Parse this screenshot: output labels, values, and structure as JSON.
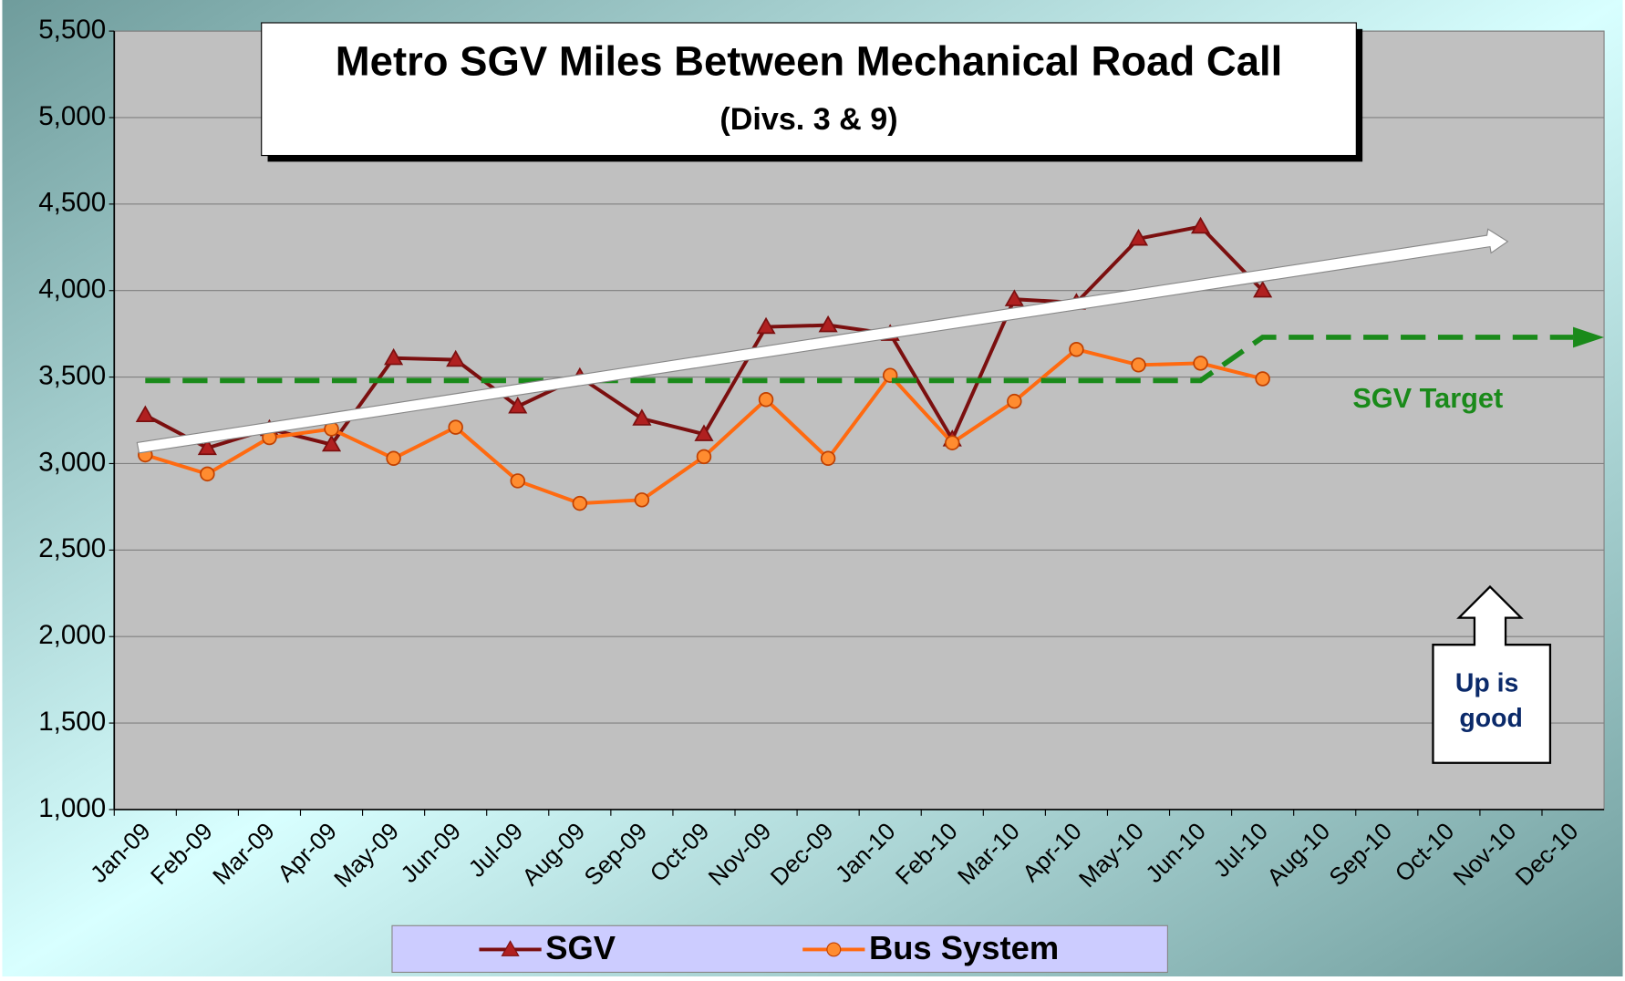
{
  "chart_data": {
    "type": "line",
    "title": "Metro SGV Miles Between Mechanical Road Call",
    "subtitle": "(Divs.  3 & 9)",
    "categories": [
      "Jan-09",
      "Feb-09",
      "Mar-09",
      "Apr-09",
      "May-09",
      "Jun-09",
      "Jul-09",
      "Aug-09",
      "Sep-09",
      "Oct-09",
      "Nov-09",
      "Dec-09",
      "Jan-10",
      "Feb-10",
      "Mar-10",
      "Apr-10",
      "May-10",
      "Jun-10",
      "Jul-10",
      "Aug-10",
      "Sep-10",
      "Oct-10",
      "Nov-10",
      "Dec-10"
    ],
    "series": [
      {
        "name": "SGV",
        "color": "#7b0f0f",
        "marker": "triangle",
        "values": [
          3280,
          3090,
          3200,
          3110,
          3610,
          3600,
          3330,
          3500,
          3260,
          3170,
          3790,
          3800,
          3750,
          3140,
          3950,
          3930,
          4300,
          4370,
          4000,
          null,
          null,
          null,
          null,
          null
        ]
      },
      {
        "name": "Bus System",
        "color": "#ff6a10",
        "marker": "circle",
        "values": [
          3050,
          2940,
          3150,
          3200,
          3030,
          3210,
          2900,
          2770,
          2790,
          3040,
          3370,
          3030,
          3510,
          3120,
          3360,
          3660,
          3570,
          3580,
          3490,
          null,
          null,
          null,
          null,
          null
        ]
      },
      {
        "name": "SGV Target",
        "color": "#1a8a1a",
        "dashed": true,
        "values": [
          3480,
          3480,
          3480,
          3480,
          3480,
          3480,
          3480,
          3480,
          3480,
          3480,
          3480,
          3480,
          3480,
          3480,
          3480,
          3480,
          3480,
          3480,
          3730,
          3730,
          3730,
          3730,
          3730,
          3730
        ]
      }
    ],
    "annotation": "Up is good",
    "ylim": [
      1000,
      5500
    ],
    "yticks": [
      {
        "value": 1000,
        "label": "1,000"
      },
      {
        "value": 1500,
        "label": "1,500"
      },
      {
        "value": 2000,
        "label": "2,000"
      },
      {
        "value": 2500,
        "label": "2,500"
      },
      {
        "value": 3000,
        "label": "3,000"
      },
      {
        "value": 3500,
        "label": "3,500"
      },
      {
        "value": 4000,
        "label": "4,000"
      },
      {
        "value": 4500,
        "label": "4,500"
      },
      {
        "value": 5000,
        "label": "5,000"
      },
      {
        "value": 5500,
        "label": "5,500"
      }
    ],
    "grid": true
  }
}
